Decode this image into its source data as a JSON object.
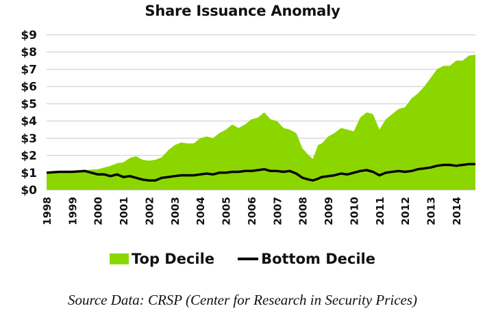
{
  "chart_data": {
    "type": "area",
    "title": "Share Issuance Anomaly",
    "xlabel": "",
    "ylabel": "",
    "ylim": [
      0,
      9
    ],
    "xlim": [
      1998.0,
      2014.75
    ],
    "y_ticks": [
      0,
      1,
      2,
      3,
      4,
      5,
      6,
      7,
      8,
      9
    ],
    "y_tick_labels": [
      "$0",
      "$1",
      "$2",
      "$3",
      "$4",
      "$5",
      "$6",
      "$7",
      "$8",
      "$9"
    ],
    "x_tick_labels": [
      "1998",
      "1999",
      "2000",
      "2001",
      "2002",
      "2003",
      "2004",
      "2005",
      "2006",
      "2007",
      "2008",
      "2009",
      "2010",
      "2011",
      "2012",
      "2013",
      "2014"
    ],
    "grid": true,
    "legend_position": "bottom",
    "colors": {
      "top_decile": "#8cd600",
      "bottom_decile": "#000000",
      "grid": "#d9d9d9"
    },
    "x": [
      1998.0,
      1998.5,
      1999.0,
      1999.5,
      2000.0,
      2000.25,
      2000.5,
      2000.75,
      2001.0,
      2001.25,
      2001.5,
      2001.75,
      2002.0,
      2002.25,
      2002.5,
      2002.75,
      2003.0,
      2003.25,
      2003.5,
      2003.75,
      2004.0,
      2004.25,
      2004.5,
      2004.75,
      2005.0,
      2005.25,
      2005.5,
      2005.75,
      2006.0,
      2006.25,
      2006.5,
      2006.75,
      2007.0,
      2007.25,
      2007.5,
      2007.75,
      2008.0,
      2008.25,
      2008.4,
      2008.6,
      2008.75,
      2009.0,
      2009.25,
      2009.5,
      2009.75,
      2010.0,
      2010.25,
      2010.5,
      2010.75,
      2011.0,
      2011.25,
      2011.5,
      2011.75,
      2012.0,
      2012.25,
      2012.5,
      2012.75,
      2013.0,
      2013.25,
      2013.5,
      2013.75,
      2014.0,
      2014.25,
      2014.5,
      2014.75
    ],
    "series": [
      {
        "name": "Top Decile",
        "kind": "area",
        "values": [
          1.0,
          1.05,
          1.1,
          1.15,
          1.2,
          1.3,
          1.4,
          1.55,
          1.6,
          1.85,
          1.95,
          1.75,
          1.7,
          1.75,
          1.9,
          2.3,
          2.6,
          2.75,
          2.7,
          2.7,
          3.0,
          3.1,
          3.0,
          3.3,
          3.5,
          3.8,
          3.6,
          3.8,
          4.1,
          4.2,
          4.5,
          4.1,
          4.0,
          3.6,
          3.5,
          3.3,
          2.4,
          2.0,
          1.8,
          2.6,
          2.7,
          3.1,
          3.3,
          3.6,
          3.5,
          3.4,
          4.2,
          4.5,
          4.4,
          3.5,
          4.1,
          4.4,
          4.7,
          4.8,
          5.3,
          5.6,
          6.0,
          6.5,
          7.0,
          7.2,
          7.2,
          7.5,
          7.5,
          7.8,
          7.85
        ]
      },
      {
        "name": "Bottom Decile",
        "kind": "line",
        "values": [
          1.0,
          1.05,
          1.05,
          1.1,
          0.9,
          0.9,
          0.8,
          0.9,
          0.75,
          0.8,
          0.7,
          0.6,
          0.55,
          0.55,
          0.7,
          0.75,
          0.8,
          0.85,
          0.85,
          0.85,
          0.9,
          0.95,
          0.9,
          1.0,
          1.0,
          1.05,
          1.05,
          1.1,
          1.1,
          1.15,
          1.2,
          1.1,
          1.1,
          1.05,
          1.1,
          0.95,
          0.7,
          0.6,
          0.55,
          0.65,
          0.75,
          0.8,
          0.85,
          0.95,
          0.9,
          1.0,
          1.1,
          1.15,
          1.05,
          0.85,
          1.0,
          1.05,
          1.1,
          1.05,
          1.1,
          1.2,
          1.25,
          1.3,
          1.4,
          1.45,
          1.45,
          1.4,
          1.45,
          1.5,
          1.5
        ]
      }
    ]
  },
  "legend": {
    "items": [
      {
        "label": "Top Decile",
        "marker": "area-swatch"
      },
      {
        "label": "Bottom Decile",
        "marker": "line-swatch"
      }
    ]
  },
  "source_note": "Source Data: CRSP (Center for Research in Security Prices)"
}
